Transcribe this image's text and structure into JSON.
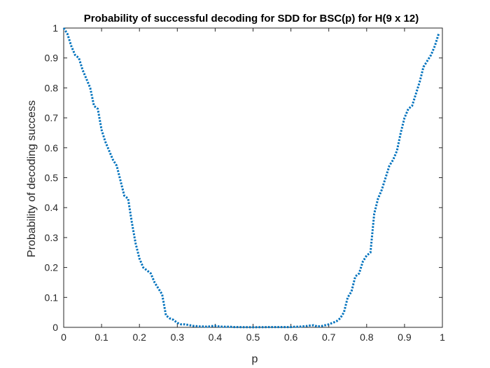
{
  "chart_data": {
    "type": "line",
    "title": "Probability of successful decoding for SDD for BSC(p) for H(9 x 12)",
    "xlabel": "p",
    "ylabel": "Probability of decoding success",
    "xlim": [
      0,
      1
    ],
    "ylim": [
      0,
      1
    ],
    "xticks": [
      "0",
      "0.1",
      "0.2",
      "0.3",
      "0.4",
      "0.5",
      "0.6",
      "0.7",
      "0.8",
      "0.9",
      "1"
    ],
    "yticks": [
      "0",
      "0.1",
      "0.2",
      "0.3",
      "0.4",
      "0.5",
      "0.6",
      "0.7",
      "0.8",
      "0.9",
      "1"
    ],
    "grid": false,
    "line_color": "#0072BD",
    "line_style": "dotted",
    "series": [
      {
        "x": [
          0.0,
          0.01,
          0.02,
          0.03,
          0.04,
          0.05,
          0.06,
          0.07,
          0.08,
          0.09,
          0.1,
          0.11,
          0.12,
          0.13,
          0.14,
          0.15,
          0.16,
          0.17,
          0.18,
          0.19,
          0.2,
          0.21,
          0.22,
          0.23,
          0.24,
          0.25,
          0.26,
          0.27,
          0.28,
          0.29,
          0.3,
          0.31,
          0.32,
          0.33,
          0.34,
          0.35,
          0.36,
          0.37,
          0.38,
          0.39,
          0.4,
          0.41,
          0.42,
          0.43,
          0.44,
          0.45,
          0.46,
          0.47,
          0.48,
          0.49,
          0.5,
          0.51,
          0.52,
          0.53,
          0.54,
          0.55,
          0.56,
          0.57,
          0.58,
          0.59,
          0.6,
          0.61,
          0.62,
          0.63,
          0.64,
          0.65,
          0.66,
          0.67,
          0.68,
          0.69,
          0.7,
          0.71,
          0.72,
          0.73,
          0.74,
          0.75,
          0.76,
          0.77,
          0.78,
          0.79,
          0.8,
          0.81,
          0.82,
          0.83,
          0.84,
          0.85,
          0.86,
          0.87,
          0.88,
          0.89,
          0.9,
          0.91,
          0.92,
          0.93,
          0.94,
          0.95,
          0.96,
          0.97,
          0.98,
          0.99
        ],
        "values": [
          1.0,
          0.98,
          0.94,
          0.91,
          0.9,
          0.86,
          0.83,
          0.8,
          0.74,
          0.73,
          0.66,
          0.62,
          0.59,
          0.56,
          0.54,
          0.49,
          0.44,
          0.43,
          0.35,
          0.28,
          0.23,
          0.2,
          0.19,
          0.18,
          0.15,
          0.13,
          0.11,
          0.04,
          0.03,
          0.025,
          0.015,
          0.01,
          0.01,
          0.008,
          0.005,
          0.004,
          0.003,
          0.003,
          0.002,
          0.004,
          0.005,
          0.003,
          0.002,
          0.002,
          0.002,
          0.001,
          0.001,
          0.0005,
          0.0005,
          0.0005,
          0.0003,
          0.0005,
          0.0005,
          0.0005,
          0.001,
          0.001,
          0.001,
          0.001,
          0.001,
          0.001,
          0.001,
          0.002,
          0.002,
          0.003,
          0.004,
          0.006,
          0.007,
          0.003,
          0.004,
          0.007,
          0.01,
          0.015,
          0.02,
          0.03,
          0.05,
          0.1,
          0.12,
          0.17,
          0.18,
          0.22,
          0.24,
          0.25,
          0.38,
          0.43,
          0.46,
          0.5,
          0.54,
          0.56,
          0.59,
          0.65,
          0.7,
          0.73,
          0.74,
          0.78,
          0.82,
          0.87,
          0.89,
          0.91,
          0.94,
          0.98
        ]
      }
    ]
  }
}
